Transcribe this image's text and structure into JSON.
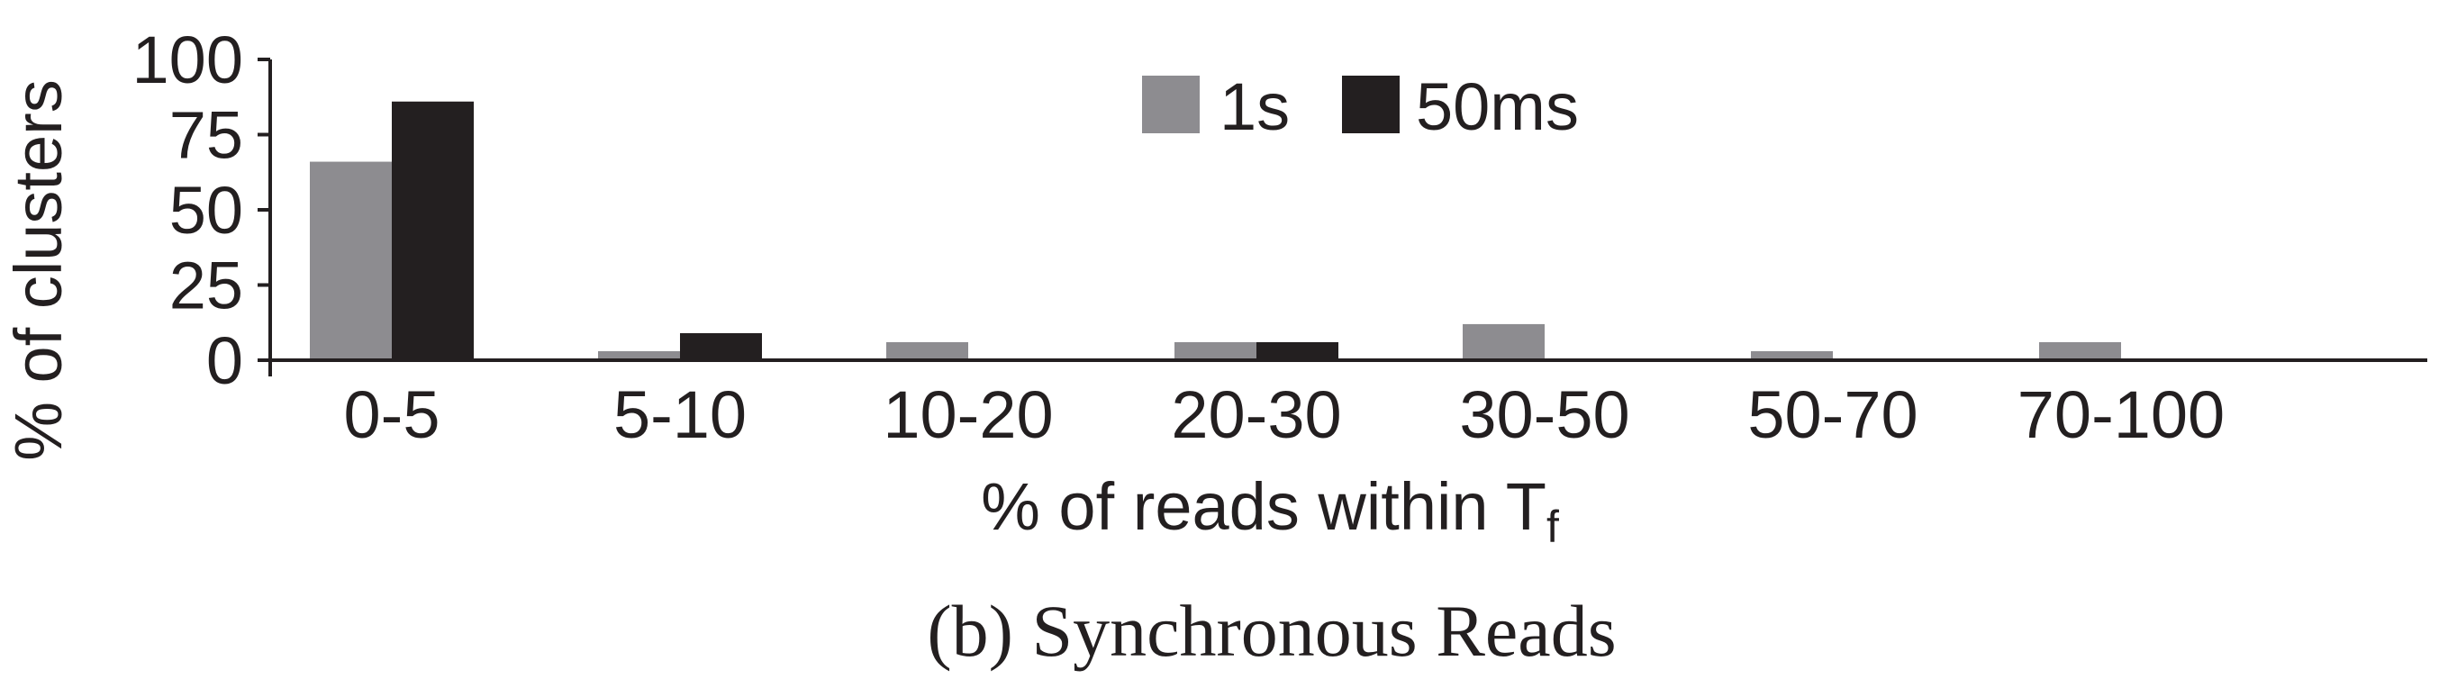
{
  "chart_data": {
    "type": "bar",
    "categories": [
      "0-5",
      "5-10",
      "10-20",
      "20-30",
      "30-50",
      "50-70",
      "70-100"
    ],
    "series": [
      {
        "name": "1s",
        "color": "#8d8c90",
        "values": [
          66,
          3,
          6,
          6,
          12,
          3,
          6
        ]
      },
      {
        "name": "50ms",
        "color": "#231f20",
        "values": [
          86,
          9,
          0,
          6,
          0,
          0,
          0
        ]
      }
    ],
    "xlabel": "% of reads within T",
    "xlabel_subscript": "f",
    "ylabel": "% of clusters",
    "ylim": [
      0,
      100
    ],
    "yticks": [
      0,
      25,
      50,
      75,
      100
    ],
    "legend_position": "top-center",
    "grid": false
  },
  "caption": "(b) Synchronous Reads"
}
